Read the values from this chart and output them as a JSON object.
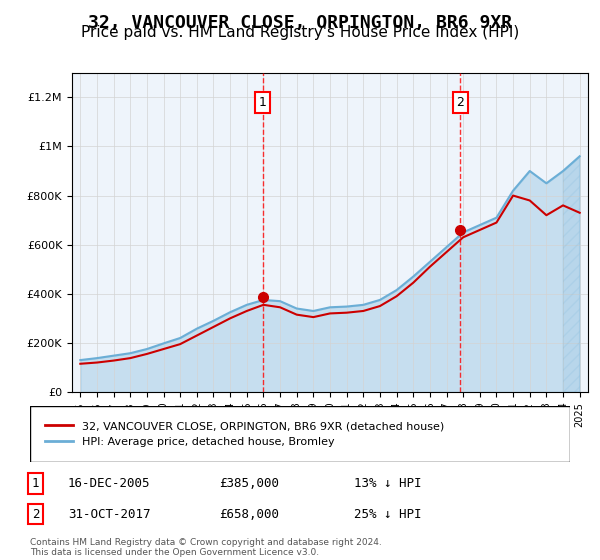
{
  "title": "32, VANCOUVER CLOSE, ORPINGTON, BR6 9XR",
  "subtitle": "Price paid vs. HM Land Registry's House Price Index (HPI)",
  "title_fontsize": 13,
  "subtitle_fontsize": 11,
  "legend1": "32, VANCOUVER CLOSE, ORPINGTON, BR6 9XR (detached house)",
  "legend2": "HPI: Average price, detached house, Bromley",
  "footer": "Contains HM Land Registry data © Crown copyright and database right 2024.\nThis data is licensed under the Open Government Licence v3.0.",
  "transactions": [
    {
      "id": 1,
      "date": "16-DEC-2005",
      "price": "£385,000",
      "pct": "13% ↓ HPI",
      "year": 2005.96
    },
    {
      "id": 2,
      "date": "31-OCT-2017",
      "price": "£658,000",
      "pct": "25% ↓ HPI",
      "year": 2017.83
    }
  ],
  "hpi_color": "#6baed6",
  "house_color": "#cc0000",
  "background_color": "#ddeeff",
  "ylim": [
    0,
    1300000
  ],
  "xlim_start": 1994.5,
  "xlim_end": 2025.5,
  "hpi_years": [
    1995,
    1996,
    1997,
    1998,
    1999,
    2000,
    2001,
    2002,
    2003,
    2004,
    2005,
    2006,
    2007,
    2008,
    2009,
    2010,
    2011,
    2012,
    2013,
    2014,
    2015,
    2016,
    2017,
    2018,
    2019,
    2020,
    2021,
    2022,
    2023,
    2024,
    2025
  ],
  "hpi_values": [
    130000,
    138000,
    148000,
    158000,
    175000,
    198000,
    220000,
    258000,
    290000,
    325000,
    355000,
    375000,
    370000,
    340000,
    330000,
    345000,
    348000,
    355000,
    375000,
    415000,
    470000,
    530000,
    590000,
    650000,
    680000,
    710000,
    820000,
    900000,
    850000,
    900000,
    960000
  ],
  "house_years": [
    1995,
    1996,
    1997,
    1998,
    1999,
    2000,
    2001,
    2002,
    2003,
    2004,
    2005,
    2006,
    2007,
    2008,
    2009,
    2010,
    2011,
    2012,
    2013,
    2014,
    2015,
    2016,
    2017,
    2018,
    2019,
    2020,
    2021,
    2022,
    2023,
    2024,
    2025
  ],
  "house_values": [
    115000,
    120000,
    128000,
    138000,
    155000,
    175000,
    195000,
    230000,
    265000,
    300000,
    330000,
    355000,
    345000,
    315000,
    305000,
    320000,
    323000,
    330000,
    350000,
    390000,
    445000,
    510000,
    570000,
    630000,
    660000,
    690000,
    800000,
    780000,
    720000,
    760000,
    730000
  ]
}
